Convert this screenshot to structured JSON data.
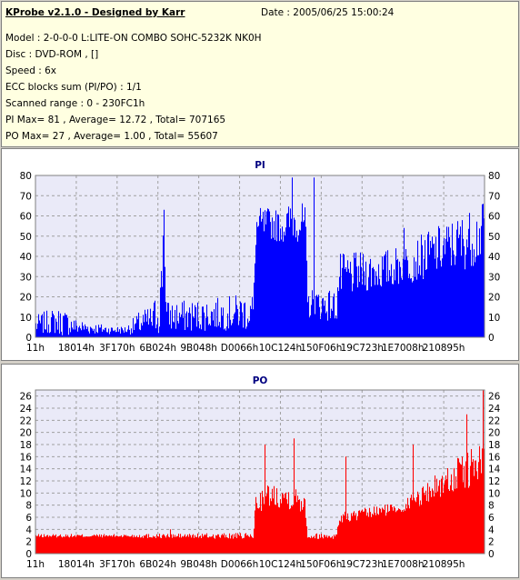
{
  "info": {
    "title": "KProbe v2.1.0 - Designed by Karr",
    "date": "Date : 2005/06/25 15:00:24",
    "model": "Model : 2-0-0-0 L:LITE-ON COMBO SOHC-5232K NK0H",
    "disc": "Disc : DVD-ROM ,  []",
    "speed": "Speed : 6x",
    "ecc": "ECC blocks sum (PI/PO) : 1/1",
    "range": "Scanned range : 0 - 230FC1h",
    "pi_stats": "PI Max= 81 , Average= 12.72 , Total= 707165",
    "po_stats": "PO Max= 27 , Average= 1.00 , Total= 55607"
  },
  "colors": {
    "pi": "#0000ff",
    "po": "#ff0000",
    "plot_bg": "#eaeaf8",
    "grid": "#a0a0a0"
  },
  "chart_data": [
    {
      "type": "bar",
      "title": "PI",
      "ylim": [
        0,
        80
      ],
      "yticks": [
        0,
        10,
        20,
        30,
        40,
        50,
        60,
        70,
        80
      ],
      "xrange_hex": [
        "0",
        "230FC1"
      ],
      "xtick_labels": [
        "11h",
        "18014h",
        "3F170h",
        "6B024h",
        "9B048h",
        "D0066h",
        "10C124h",
        "150F06h",
        "19C723h",
        "1E7008h",
        "210895h"
      ],
      "grid": true,
      "profile": [
        [
          0.0,
          7,
          5
        ],
        [
          0.03,
          9,
          6
        ],
        [
          0.06,
          9,
          7
        ],
        [
          0.09,
          6,
          4
        ],
        [
          0.13,
          5,
          3
        ],
        [
          0.17,
          4,
          2
        ],
        [
          0.2,
          4,
          2
        ],
        [
          0.23,
          8,
          6
        ],
        [
          0.26,
          10,
          8
        ],
        [
          0.27,
          15,
          12
        ],
        [
          0.28,
          25,
          20
        ],
        [
          0.285,
          63,
          0
        ],
        [
          0.29,
          12,
          8
        ],
        [
          0.34,
          12,
          8
        ],
        [
          0.4,
          13,
          8
        ],
        [
          0.45,
          14,
          9
        ],
        [
          0.485,
          15,
          10
        ],
        [
          0.49,
          56,
          10
        ],
        [
          0.52,
          58,
          8
        ],
        [
          0.55,
          56,
          8
        ],
        [
          0.57,
          60,
          10
        ],
        [
          0.6,
          58,
          10
        ],
        [
          0.605,
          18,
          8
        ],
        [
          0.64,
          18,
          8
        ],
        [
          0.67,
          17,
          8
        ],
        [
          0.675,
          32,
          12
        ],
        [
          0.72,
          34,
          10
        ],
        [
          0.77,
          35,
          10
        ],
        [
          0.82,
          38,
          10
        ],
        [
          0.88,
          44,
          12
        ],
        [
          0.95,
          50,
          14
        ],
        [
          1.0,
          55,
          15
        ]
      ],
      "spikes": [
        [
          0.285,
          63
        ],
        [
          0.57,
          79
        ],
        [
          0.62,
          79
        ],
        [
          0.82,
          54
        ],
        [
          0.995,
          66
        ]
      ]
    },
    {
      "type": "bar",
      "title": "PO",
      "ylim": [
        0,
        27
      ],
      "yticks": [
        0,
        2,
        4,
        6,
        8,
        10,
        12,
        14,
        16,
        18,
        20,
        22,
        24,
        26
      ],
      "xrange_hex": [
        "0",
        "230FC1"
      ],
      "xtick_labels": [
        "11h",
        "18014h",
        "3F170h",
        "6B024h",
        "9B048h",
        "D0066h",
        "10C124h",
        "150F06h",
        "19C723h",
        "1E7008h",
        "210895h"
      ],
      "grid": true,
      "profile": [
        [
          0.0,
          3,
          0.3
        ],
        [
          0.2,
          3,
          0.3
        ],
        [
          0.25,
          3,
          0.4
        ],
        [
          0.485,
          3,
          0.5
        ],
        [
          0.49,
          9,
          2
        ],
        [
          0.52,
          10,
          2
        ],
        [
          0.55,
          10,
          2
        ],
        [
          0.6,
          9,
          2
        ],
        [
          0.605,
          3,
          0.5
        ],
        [
          0.67,
          3,
          0.5
        ],
        [
          0.675,
          6,
          1
        ],
        [
          0.75,
          7,
          1
        ],
        [
          0.82,
          8,
          1
        ],
        [
          0.88,
          11,
          2
        ],
        [
          0.95,
          14,
          3
        ],
        [
          1.0,
          16,
          4
        ]
      ],
      "spikes": [
        [
          0.51,
          18
        ],
        [
          0.575,
          19
        ],
        [
          0.3,
          4
        ],
        [
          0.995,
          27
        ],
        [
          0.96,
          23
        ],
        [
          0.84,
          18
        ],
        [
          0.69,
          16
        ]
      ]
    }
  ]
}
